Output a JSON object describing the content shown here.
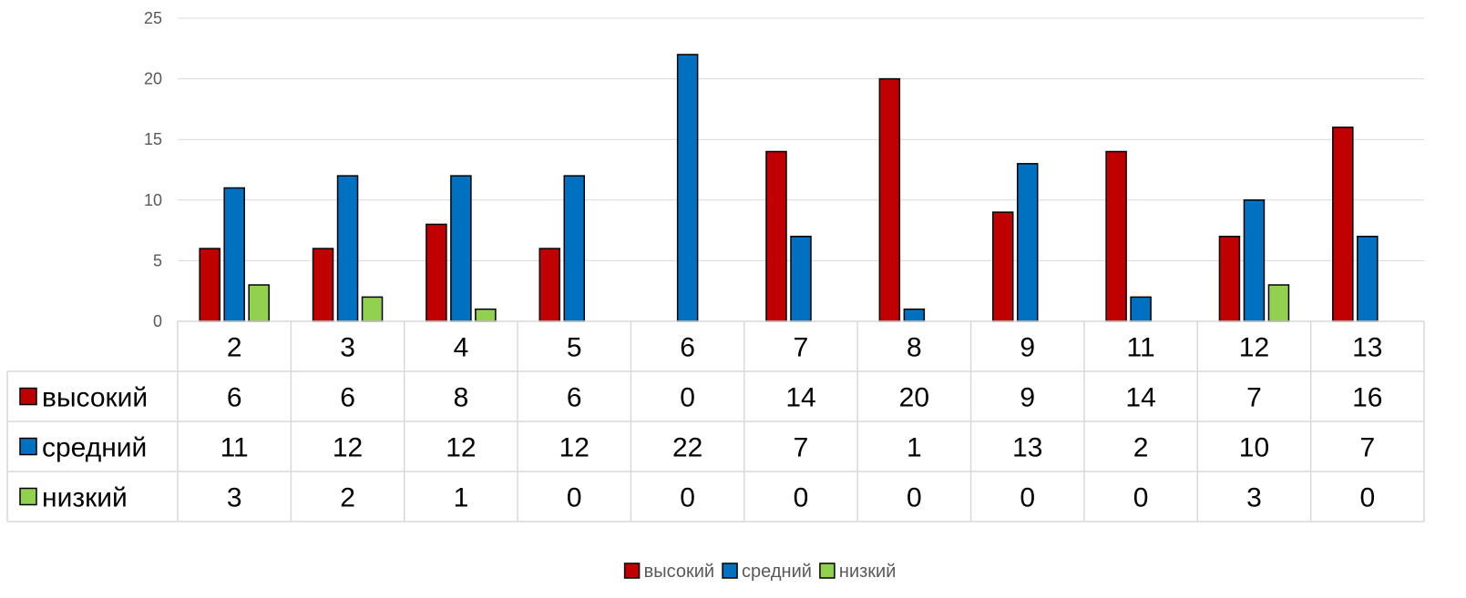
{
  "chart_data": {
    "type": "bar",
    "categories": [
      "2",
      "3",
      "4",
      "5",
      "6",
      "7",
      "8",
      "9",
      "11",
      "12",
      "13"
    ],
    "series": [
      {
        "name": "высокий",
        "values": [
          6,
          6,
          8,
          6,
          0,
          14,
          20,
          9,
          14,
          7,
          16
        ],
        "color": "#C00000"
      },
      {
        "name": "средний",
        "values": [
          11,
          12,
          12,
          12,
          22,
          7,
          1,
          13,
          2,
          10,
          7
        ],
        "color": "#0070C0"
      },
      {
        "name": "низкий",
        "values": [
          3,
          2,
          1,
          0,
          0,
          0,
          0,
          0,
          0,
          3,
          0
        ],
        "color": "#92D050"
      }
    ],
    "ylim": [
      0,
      25
    ],
    "yticks": [
      "0",
      "5",
      "10",
      "15",
      "20",
      "25"
    ],
    "grid": true,
    "data_table": true,
    "legend_position": "bottom"
  }
}
